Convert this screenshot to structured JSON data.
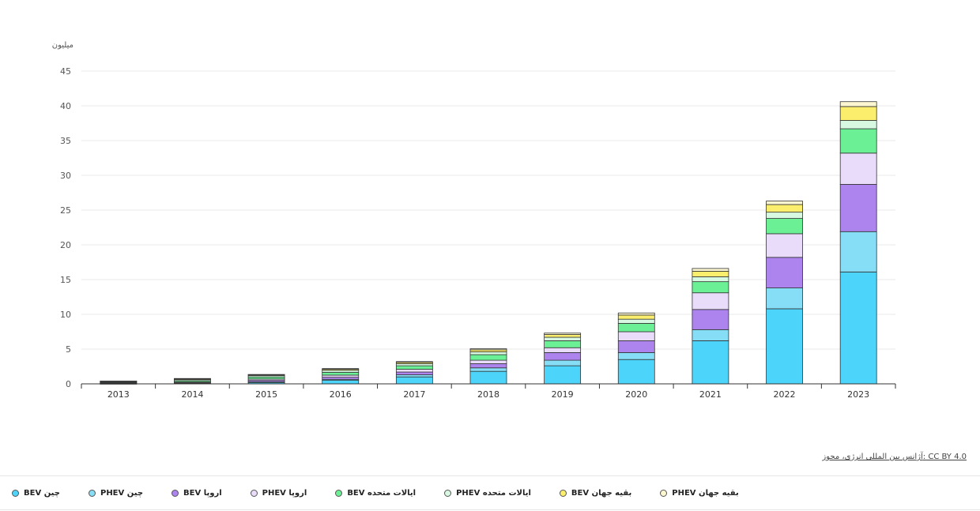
{
  "chart_data": {
    "type": "bar",
    "stacked": true,
    "unit_label": "میلیون",
    "categories": [
      "2013",
      "2014",
      "2015",
      "2016",
      "2017",
      "2018",
      "2019",
      "2020",
      "2021",
      "2022",
      "2023"
    ],
    "ylim": [
      0,
      45
    ],
    "yticks": [
      0,
      5,
      10,
      15,
      20,
      25,
      30,
      35,
      40,
      45
    ],
    "grid": true,
    "series": [
      {
        "name": "BEV چین",
        "color": "#4dd4fb",
        "values": [
          0.02,
          0.05,
          0.2,
          0.5,
          1.0,
          1.8,
          2.6,
          3.5,
          6.2,
          10.8,
          16.1
        ]
      },
      {
        "name": "PHEV چین",
        "color": "#86def6",
        "values": [
          0.01,
          0.02,
          0.1,
          0.15,
          0.3,
          0.5,
          0.8,
          1.0,
          1.6,
          3.0,
          5.8
        ]
      },
      {
        "name": "BEV اروپا",
        "color": "#ad83ee",
        "values": [
          0.05,
          0.1,
          0.2,
          0.3,
          0.4,
          0.6,
          1.1,
          1.7,
          2.9,
          4.4,
          6.8
        ]
      },
      {
        "name": "PHEV اروپا",
        "color": "#e9dcfa",
        "values": [
          0.05,
          0.1,
          0.2,
          0.3,
          0.4,
          0.5,
          0.7,
          1.3,
          2.4,
          3.4,
          4.5
        ]
      },
      {
        "name": "BEV ایالات متحده",
        "color": "#6cf095",
        "values": [
          0.1,
          0.2,
          0.3,
          0.4,
          0.5,
          0.8,
          1.0,
          1.2,
          1.6,
          2.2,
          3.5
        ]
      },
      {
        "name": "PHEV ایالات متحده",
        "color": "#d8f9e1",
        "values": [
          0.1,
          0.15,
          0.2,
          0.3,
          0.3,
          0.4,
          0.5,
          0.6,
          0.7,
          0.9,
          1.2
        ]
      },
      {
        "name": "BEV بقیه جهان",
        "color": "#fbee6d",
        "values": [
          0.05,
          0.1,
          0.1,
          0.15,
          0.2,
          0.3,
          0.4,
          0.6,
          0.8,
          1.1,
          2.0
        ]
      },
      {
        "name": "PHEV بقیه جهان",
        "color": "#fcf7d1",
        "values": [
          0.02,
          0.05,
          0.05,
          0.1,
          0.1,
          0.15,
          0.2,
          0.3,
          0.4,
          0.5,
          0.7
        ]
      }
    ],
    "legend_position": "bottom-left"
  },
  "credit": {
    "text": "آژانس بین المللی انرژی، مجوز: CC BY 4.0"
  }
}
